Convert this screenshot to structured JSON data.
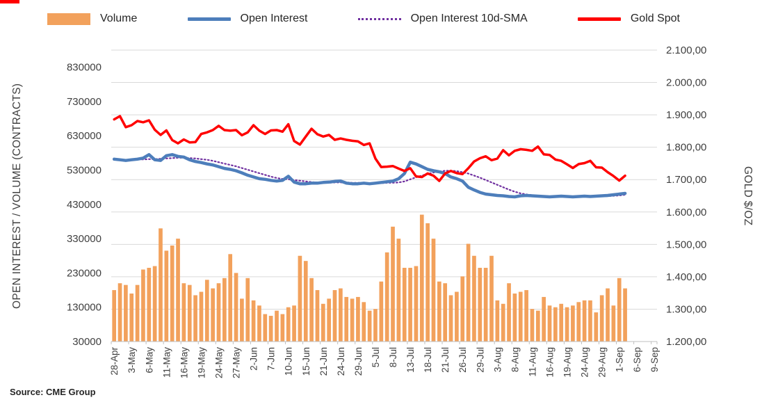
{
  "source": "Source: CME Group",
  "chart_data": {
    "type": "combo",
    "title": "",
    "legend_position": "top",
    "grid": true,
    "x_axis": {
      "labels": [
        "28-Apr",
        "3-May",
        "6-May",
        "11-May",
        "16-May",
        "19-May",
        "24-May",
        "27-May",
        "2-Jun",
        "7-Jun",
        "10-Jun",
        "15-Jun",
        "21-Jun",
        "24-Jun",
        "29-Jun",
        "5-Jul",
        "8-Jul",
        "13-Jul",
        "18-Jul",
        "21-Jul",
        "26-Jul",
        "29-Jul",
        "3-Aug",
        "8-Aug",
        "11-Aug",
        "16-Aug",
        "19-Aug",
        "24-Aug",
        "29-Aug",
        "1-Sep",
        "6-Sep",
        "9-Sep"
      ],
      "label_every": 3,
      "total_slots": 94
    },
    "left_axis": {
      "title": "OPEN INTEREST / VOLUME (CONTRACTS)",
      "min": 30000,
      "max": 880000,
      "ticks": [
        830000,
        730000,
        630000,
        530000,
        430000,
        330000,
        230000,
        130000,
        30000
      ],
      "tick_labels": [
        "830000",
        "730000",
        "630000",
        "530000",
        "430000",
        "330000",
        "230000",
        "130000",
        "30000"
      ]
    },
    "right_axis": {
      "title": "GOLD $/OZ",
      "min": 1200,
      "max": 2100,
      "ticks": [
        2100,
        2000,
        1900,
        1800,
        1700,
        1600,
        1500,
        1400,
        1300,
        1200
      ],
      "tick_labels": [
        "2.100,00",
        "2.000,00",
        "1.900,00",
        "1.800,00",
        "1.700,00",
        "1.600,00",
        "1.500,00",
        "1.400,00",
        "1.300,00",
        "1.200,00"
      ]
    },
    "series": {
      "volume": {
        "name": "Volume",
        "type": "bar",
        "axis": "left",
        "color": "#F2A15C",
        "values": [
          180000,
          200000,
          195000,
          170000,
          195000,
          240000,
          245000,
          250000,
          360000,
          295000,
          310000,
          330000,
          200000,
          195000,
          165000,
          175000,
          210000,
          185000,
          200000,
          215000,
          285000,
          230000,
          155000,
          215000,
          150000,
          135000,
          110000,
          105000,
          120000,
          110000,
          130000,
          135000,
          280000,
          265000,
          215000,
          180000,
          140000,
          155000,
          180000,
          185000,
          160000,
          155000,
          160000,
          145000,
          120000,
          125000,
          205000,
          290000,
          365000,
          330000,
          245000,
          245000,
          250000,
          400000,
          375000,
          330000,
          205000,
          200000,
          165000,
          175000,
          220000,
          315000,
          280000,
          245000,
          245000,
          280000,
          150000,
          140000,
          200000,
          170000,
          175000,
          180000,
          125000,
          120000,
          160000,
          135000,
          130000,
          140000,
          130000,
          135000,
          145000,
          150000,
          150000,
          115000,
          165000,
          185000,
          135000,
          215000,
          185000
        ]
      },
      "open_interest": {
        "name": "Open Interest",
        "type": "line",
        "axis": "left",
        "color": "#4D7EBB",
        "values": [
          562000,
          560000,
          558000,
          560000,
          562000,
          565000,
          575000,
          560000,
          558000,
          572000,
          575000,
          570000,
          568000,
          560000,
          555000,
          552000,
          548000,
          545000,
          540000,
          535000,
          532000,
          528000,
          522000,
          515000,
          510000,
          505000,
          503000,
          500000,
          498000,
          500000,
          512000,
          495000,
          490000,
          490000,
          492000,
          492000,
          494000,
          495000,
          497000,
          498000,
          492000,
          490000,
          490000,
          492000,
          490000,
          492000,
          494000,
          496000,
          498000,
          505000,
          520000,
          553000,
          548000,
          540000,
          532000,
          528000,
          525000,
          520000,
          510000,
          505000,
          498000,
          480000,
          472000,
          465000,
          460000,
          458000,
          456000,
          455000,
          453000,
          452000,
          455000,
          456000,
          455000,
          454000,
          453000,
          452000,
          453000,
          454000,
          453000,
          452000,
          453000,
          454000,
          453000,
          454000,
          455000,
          456000,
          458000,
          460000,
          462000
        ]
      },
      "open_interest_sma": {
        "name": "Open Interest 10d-SMA",
        "type": "dotted-line",
        "axis": "left",
        "color": "#7030A0",
        "values": [
          560000,
          560000,
          560000,
          560000,
          561000,
          561000,
          562000,
          562000,
          563000,
          564000,
          565000,
          566000,
          566000,
          565000,
          564000,
          562000,
          560000,
          557000,
          553000,
          549000,
          545000,
          541000,
          536000,
          531000,
          526000,
          521000,
          516000,
          511000,
          507000,
          504000,
          503000,
          501000,
          499000,
          497000,
          495000,
          494000,
          493000,
          493000,
          494000,
          494000,
          494000,
          493000,
          493000,
          493000,
          492000,
          492000,
          492000,
          493000,
          493000,
          494000,
          497000,
          503000,
          509000,
          514000,
          519000,
          523000,
          526000,
          528000,
          528000,
          527000,
          524000,
          520000,
          514000,
          508000,
          501000,
          494000,
          487000,
          480000,
          473000,
          467000,
          462000,
          459000,
          457000,
          455000,
          454000,
          454000,
          453000,
          453000,
          453000,
          453000,
          453000,
          453000,
          453000,
          453000,
          454000,
          454000,
          455000,
          456000,
          458000
        ]
      },
      "gold_spot": {
        "name": "Gold Spot",
        "type": "line",
        "axis": "right",
        "color": "#FF0000",
        "values": [
          1886,
          1896,
          1862,
          1868,
          1881,
          1877,
          1883,
          1854,
          1838,
          1852,
          1822,
          1812,
          1824,
          1815,
          1816,
          1841,
          1846,
          1853,
          1866,
          1853,
          1851,
          1853,
          1837,
          1846,
          1868,
          1851,
          1841,
          1852,
          1853,
          1848,
          1871,
          1819,
          1808,
          1833,
          1857,
          1840,
          1833,
          1838,
          1823,
          1827,
          1823,
          1820,
          1818,
          1807,
          1812,
          1765,
          1739,
          1740,
          1742,
          1734,
          1727,
          1735,
          1710,
          1708,
          1719,
          1712,
          1696,
          1719,
          1727,
          1720,
          1717,
          1735,
          1756,
          1766,
          1772,
          1760,
          1765,
          1791,
          1775,
          1789,
          1794,
          1792,
          1789,
          1802,
          1778,
          1776,
          1762,
          1758,
          1747,
          1736,
          1748,
          1751,
          1758,
          1738,
          1737,
          1723,
          1711,
          1697,
          1712
        ]
      }
    }
  }
}
